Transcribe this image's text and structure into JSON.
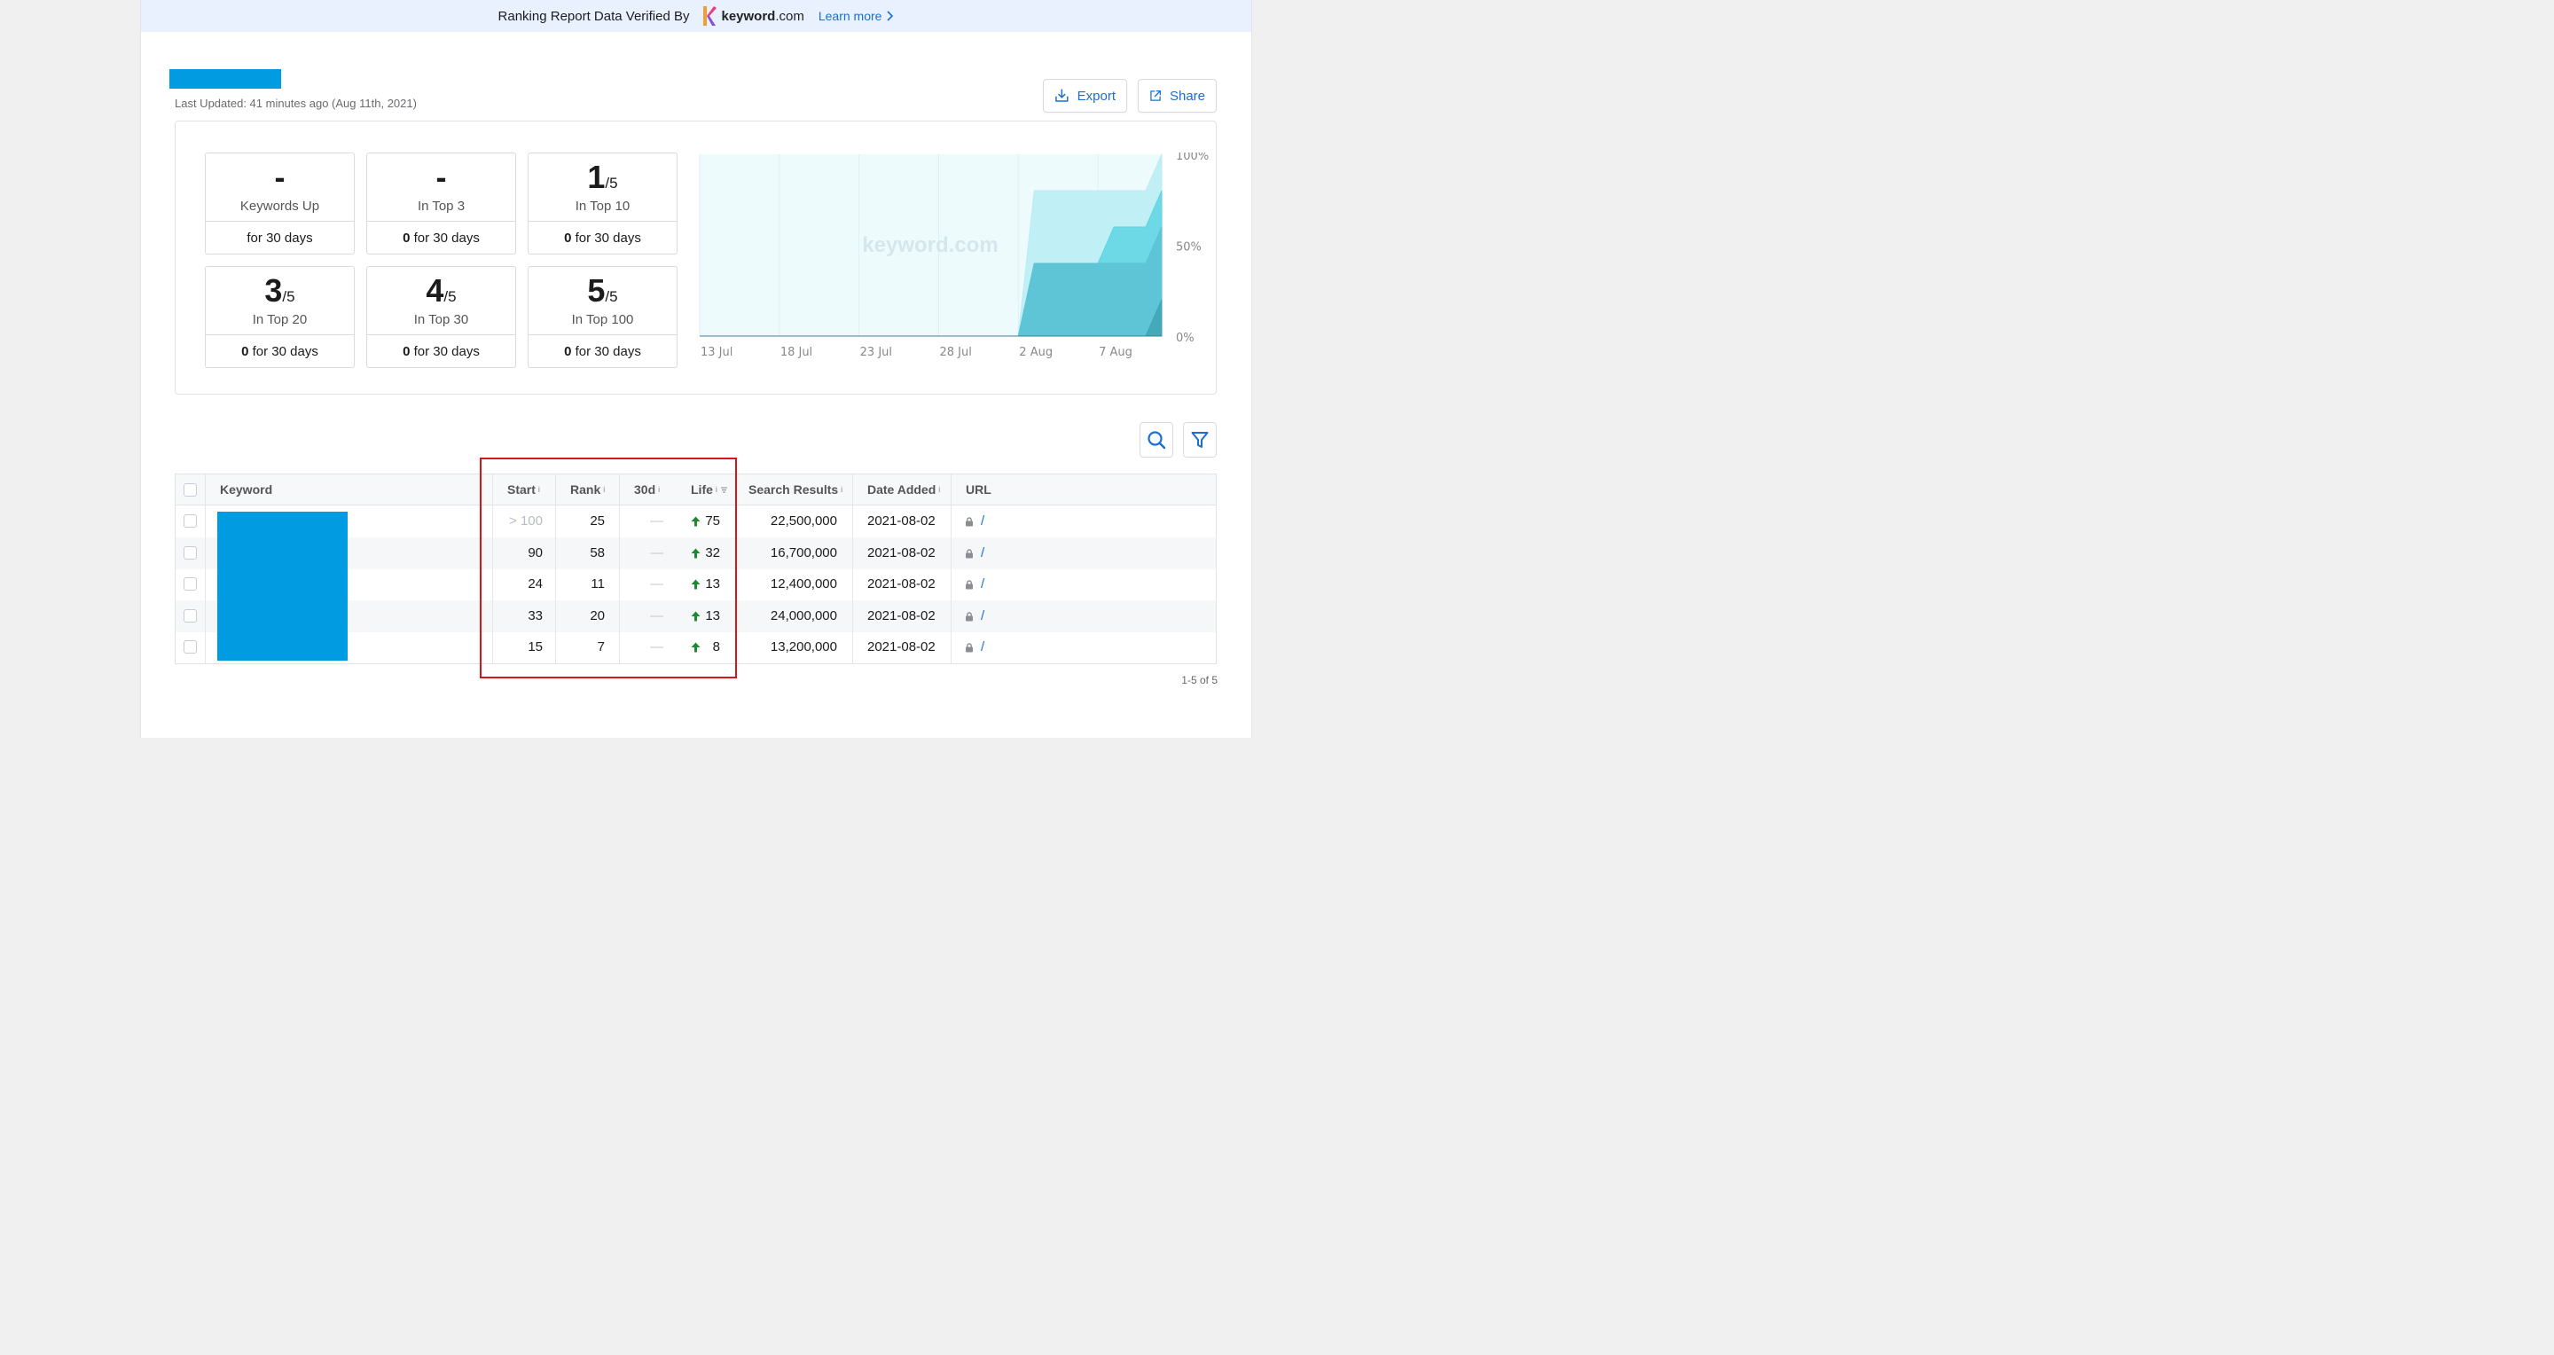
{
  "banner": {
    "text": "Ranking Report Data Verified By",
    "logo_name_bold": "keyword",
    "logo_name_rest": ".com",
    "learn_more": "Learn more",
    "background": "#e8f1fd"
  },
  "header": {
    "title": "",
    "title_color": "#009be0",
    "last_updated": "Last Updated: 41 minutes ago (Aug 11th, 2021)",
    "export_label": "Export",
    "share_label": "Share"
  },
  "stats": [
    {
      "value": "-",
      "of": "",
      "label": "Keywords Up",
      "footer_bold": "",
      "footer": "for 30 days"
    },
    {
      "value": "-",
      "of": "",
      "label": "In Top 3",
      "footer_bold": "0",
      "footer": " for 30 days"
    },
    {
      "value": "1",
      "of": "/5",
      "label": "In Top 10",
      "footer_bold": "0",
      "footer": " for 30 days"
    },
    {
      "value": "3",
      "of": "/5",
      "label": "In Top 20",
      "footer_bold": "0",
      "footer": " for 30 days"
    },
    {
      "value": "4",
      "of": "/5",
      "label": "In Top 30",
      "footer_bold": "0",
      "footer": " for 30 days"
    },
    {
      "value": "5",
      "of": "/5",
      "label": "In Top 100",
      "footer_bold": "0",
      "footer": " for 30 days"
    }
  ],
  "chart_data": {
    "type": "area",
    "title": "",
    "watermark": "keyword.com",
    "x_ticks": [
      "13 Jul",
      "18 Jul",
      "23 Jul",
      "28 Jul",
      "2 Aug",
      "7 Aug"
    ],
    "y_ticks": [
      "0%",
      "50%",
      "100%"
    ],
    "ylim": [
      0,
      100
    ],
    "x": [
      "13 Jul",
      "14 Jul",
      "15 Jul",
      "16 Jul",
      "17 Jul",
      "18 Jul",
      "19 Jul",
      "20 Jul",
      "21 Jul",
      "22 Jul",
      "23 Jul",
      "24 Jul",
      "25 Jul",
      "26 Jul",
      "27 Jul",
      "28 Jul",
      "29 Jul",
      "30 Jul",
      "31 Jul",
      "1 Aug",
      "2 Aug",
      "3 Aug",
      "4 Aug",
      "5 Aug",
      "6 Aug",
      "7 Aug",
      "8 Aug",
      "9 Aug",
      "10 Aug",
      "11 Aug"
    ],
    "series": [
      {
        "name": "",
        "color": "#b9ecf4",
        "values": [
          0,
          0,
          0,
          0,
          0,
          0,
          0,
          0,
          0,
          0,
          0,
          0,
          0,
          0,
          0,
          0,
          0,
          0,
          0,
          0,
          0,
          80,
          80,
          80,
          80,
          80,
          80,
          80,
          80,
          100
        ]
      },
      {
        "name": "",
        "color": "#5ed3e3",
        "values": [
          0,
          0,
          0,
          0,
          0,
          0,
          0,
          0,
          0,
          0,
          0,
          0,
          0,
          0,
          0,
          0,
          0,
          0,
          0,
          0,
          0,
          40,
          40,
          40,
          40,
          40,
          60,
          60,
          60,
          80
        ]
      },
      {
        "name": "",
        "color": "#5cc2d4",
        "values": [
          0,
          0,
          0,
          0,
          0,
          0,
          0,
          0,
          0,
          0,
          0,
          0,
          0,
          0,
          0,
          0,
          0,
          0,
          0,
          0,
          0,
          40,
          40,
          40,
          40,
          40,
          40,
          40,
          40,
          60
        ]
      },
      {
        "name": "",
        "color": "#3fa3b4",
        "values": [
          0,
          0,
          0,
          0,
          0,
          0,
          0,
          0,
          0,
          0,
          0,
          0,
          0,
          0,
          0,
          0,
          0,
          0,
          0,
          0,
          0,
          0,
          0,
          0,
          0,
          0,
          0,
          0,
          0,
          20
        ]
      }
    ],
    "grid": true
  },
  "table": {
    "columns": {
      "keyword": "Keyword",
      "start": "Start",
      "rank": "Rank",
      "d30": "30d",
      "life": "Life",
      "search_results": "Search Results",
      "date_added": "Date Added",
      "url": "URL"
    },
    "info_glyph": "i",
    "rows": [
      {
        "start": "> 100",
        "rank": "25",
        "d30": "—",
        "life": "75",
        "search_results": "22,500,000",
        "date_added": "2021-08-02",
        "url": "/"
      },
      {
        "start": "90",
        "rank": "58",
        "d30": "—",
        "life": "32",
        "search_results": "16,700,000",
        "date_added": "2021-08-02",
        "url": "/"
      },
      {
        "start": "24",
        "rank": "11",
        "d30": "—",
        "life": "13",
        "search_results": "12,400,000",
        "date_added": "2021-08-02",
        "url": "/"
      },
      {
        "start": "33",
        "rank": "20",
        "d30": "—",
        "life": "13",
        "search_results": "24,000,000",
        "date_added": "2021-08-02",
        "url": "/"
      },
      {
        "start": "15",
        "rank": "7",
        "d30": "—",
        "life": "8",
        "search_results": "13,200,000",
        "date_added": "2021-08-02",
        "url": "/"
      }
    ],
    "pager": "1-5 of 5"
  },
  "colors": {
    "accent": "#1a6fd1",
    "up_arrow": "#1e8a2e",
    "highlight": "#d9151b",
    "redaction": "#009be0"
  }
}
